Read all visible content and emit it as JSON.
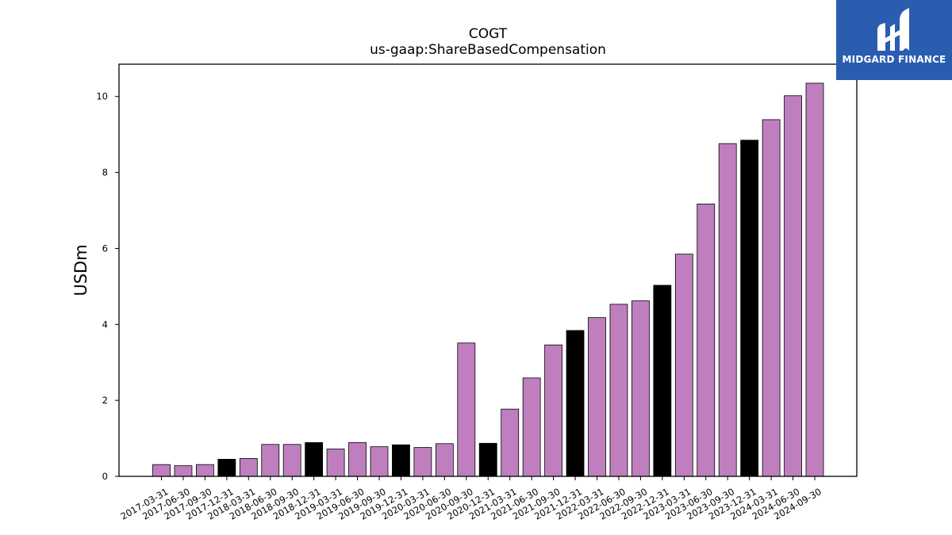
{
  "logo": {
    "text": "MIDGARD FINANCE",
    "color": "#2a5db0"
  },
  "colors": {
    "bar_default": "#bf7fbf",
    "bar_highlight": "#000000",
    "edge": "#000000"
  },
  "chart_data": {
    "type": "bar",
    "title": "COGT",
    "subtitle": "us-gaap:ShareBasedCompensation",
    "xlabel": "",
    "ylabel": "USDm",
    "ylim": [
      0,
      10.85
    ],
    "yticks": [
      0,
      2,
      4,
      6,
      8,
      10
    ],
    "grid": false,
    "categories": [
      "2017-03-31",
      "2017-06-30",
      "2017-09-30",
      "2017-12-31",
      "2018-03-31",
      "2018-06-30",
      "2018-09-30",
      "2018-12-31",
      "2019-03-31",
      "2019-06-30",
      "2019-09-30",
      "2019-12-31",
      "2020-03-31",
      "2020-06-30",
      "2020-09-30",
      "2020-12-31",
      "2021-03-31",
      "2021-06-30",
      "2021-09-30",
      "2021-12-31",
      "2022-03-31",
      "2022-06-30",
      "2022-09-30",
      "2022-12-31",
      "2023-03-31",
      "2023-06-30",
      "2023-09-30",
      "2023-12-31",
      "2024-03-31",
      "2024-06-30",
      "2024-09-30"
    ],
    "values": [
      0.31,
      0.28,
      0.31,
      0.45,
      0.47,
      0.84,
      0.84,
      0.89,
      0.72,
      0.89,
      0.78,
      0.83,
      0.76,
      0.86,
      3.51,
      0.87,
      1.77,
      2.59,
      3.46,
      3.84,
      4.18,
      4.53,
      4.62,
      5.03,
      5.85,
      7.17,
      8.76,
      8.85,
      9.39,
      10.02,
      10.35
    ],
    "highlight": [
      false,
      false,
      false,
      true,
      false,
      false,
      false,
      true,
      false,
      false,
      false,
      true,
      false,
      false,
      false,
      true,
      false,
      false,
      false,
      true,
      false,
      false,
      false,
      true,
      false,
      false,
      false,
      true,
      false,
      false,
      false
    ]
  }
}
